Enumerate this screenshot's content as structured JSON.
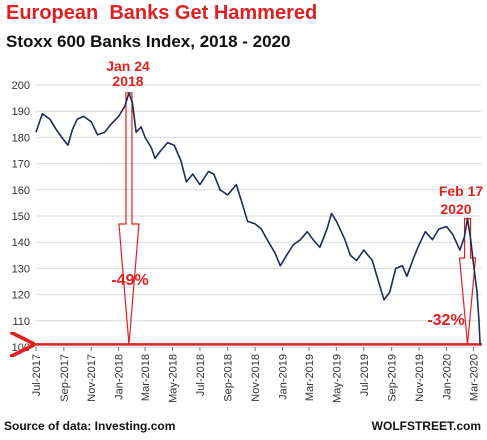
{
  "title": "European  Banks Get Hammered",
  "subtitle": "Stoxx 600 Banks Index, 2018 - 2020",
  "source": "Source of data: Investing.com",
  "brand": "WOLFSTREET.com",
  "colors": {
    "line": "#1f2d55",
    "accent": "#e02020",
    "grid": "#d9d9d9"
  },
  "annotations": {
    "peak1_date": "Jan 24",
    "peak1_year": "2018",
    "peak2_date": "Feb 17",
    "peak2_year": "2020",
    "drop1": "-49%",
    "drop2": "-32%"
  },
  "chart_data": {
    "type": "line",
    "title": "Stoxx 600 Banks Index, 2018 - 2020",
    "xlabel": "",
    "ylabel": "",
    "ylim": [
      100,
      200
    ],
    "yticks": [
      100,
      110,
      120,
      130,
      140,
      150,
      160,
      170,
      180,
      190,
      200
    ],
    "grid": true,
    "xticks": [
      "Jul-2017",
      "Sep-2017",
      "Nov-2017",
      "Jan-2018",
      "Mar-2018",
      "May-2018",
      "Jul-2018",
      "Sep-2018",
      "Nov-2018",
      "Jan-2019",
      "Mar-2019",
      "May-2019",
      "Jul-2019",
      "Sep-2019",
      "Nov-2019",
      "Jan-2020",
      "Mar-2020"
    ],
    "series": [
      {
        "values": [
          {
            "x": "2017-07-01",
            "y": 182
          },
          {
            "x": "2017-07-15",
            "y": 189
          },
          {
            "x": "2017-08-01",
            "y": 187
          },
          {
            "x": "2017-08-15",
            "y": 183
          },
          {
            "x": "2017-09-01",
            "y": 179
          },
          {
            "x": "2017-09-10",
            "y": 177
          },
          {
            "x": "2017-09-20",
            "y": 183
          },
          {
            "x": "2017-10-01",
            "y": 187
          },
          {
            "x": "2017-10-15",
            "y": 188
          },
          {
            "x": "2017-11-01",
            "y": 186
          },
          {
            "x": "2017-11-15",
            "y": 181
          },
          {
            "x": "2017-12-01",
            "y": 182
          },
          {
            "x": "2017-12-15",
            "y": 185
          },
          {
            "x": "2018-01-01",
            "y": 188
          },
          {
            "x": "2018-01-15",
            "y": 192
          },
          {
            "x": "2018-01-24",
            "y": 197
          },
          {
            "x": "2018-02-01",
            "y": 193
          },
          {
            "x": "2018-02-09",
            "y": 182
          },
          {
            "x": "2018-02-20",
            "y": 184
          },
          {
            "x": "2018-03-01",
            "y": 180
          },
          {
            "x": "2018-03-15",
            "y": 176
          },
          {
            "x": "2018-03-23",
            "y": 172
          },
          {
            "x": "2018-04-05",
            "y": 175
          },
          {
            "x": "2018-04-20",
            "y": 178
          },
          {
            "x": "2018-05-05",
            "y": 177
          },
          {
            "x": "2018-05-20",
            "y": 171
          },
          {
            "x": "2018-06-01",
            "y": 163
          },
          {
            "x": "2018-06-15",
            "y": 166
          },
          {
            "x": "2018-07-01",
            "y": 162
          },
          {
            "x": "2018-07-20",
            "y": 167
          },
          {
            "x": "2018-08-01",
            "y": 166
          },
          {
            "x": "2018-08-15",
            "y": 160
          },
          {
            "x": "2018-09-01",
            "y": 158
          },
          {
            "x": "2018-09-20",
            "y": 162
          },
          {
            "x": "2018-10-01",
            "y": 156
          },
          {
            "x": "2018-10-15",
            "y": 148
          },
          {
            "x": "2018-11-01",
            "y": 147
          },
          {
            "x": "2018-11-15",
            "y": 145
          },
          {
            "x": "2018-12-01",
            "y": 140
          },
          {
            "x": "2018-12-15",
            "y": 136
          },
          {
            "x": "2018-12-27",
            "y": 131
          },
          {
            "x": "2019-01-10",
            "y": 135
          },
          {
            "x": "2019-01-25",
            "y": 139
          },
          {
            "x": "2019-02-10",
            "y": 141
          },
          {
            "x": "2019-02-25",
            "y": 144
          },
          {
            "x": "2019-03-10",
            "y": 141
          },
          {
            "x": "2019-03-25",
            "y": 138
          },
          {
            "x": "2019-04-10",
            "y": 145
          },
          {
            "x": "2019-04-20",
            "y": 151
          },
          {
            "x": "2019-05-01",
            "y": 148
          },
          {
            "x": "2019-05-20",
            "y": 141
          },
          {
            "x": "2019-06-01",
            "y": 135
          },
          {
            "x": "2019-06-15",
            "y": 133
          },
          {
            "x": "2019-07-01",
            "y": 137
          },
          {
            "x": "2019-07-20",
            "y": 133
          },
          {
            "x": "2019-08-01",
            "y": 126
          },
          {
            "x": "2019-08-15",
            "y": 118
          },
          {
            "x": "2019-08-28",
            "y": 121
          },
          {
            "x": "2019-09-10",
            "y": 130
          },
          {
            "x": "2019-09-25",
            "y": 131
          },
          {
            "x": "2019-10-05",
            "y": 127
          },
          {
            "x": "2019-10-20",
            "y": 134
          },
          {
            "x": "2019-11-01",
            "y": 139
          },
          {
            "x": "2019-11-15",
            "y": 144
          },
          {
            "x": "2019-12-01",
            "y": 141
          },
          {
            "x": "2019-12-15",
            "y": 145
          },
          {
            "x": "2020-01-01",
            "y": 146
          },
          {
            "x": "2020-01-15",
            "y": 143
          },
          {
            "x": "2020-01-31",
            "y": 137
          },
          {
            "x": "2020-02-10",
            "y": 142
          },
          {
            "x": "2020-02-17",
            "y": 149
          },
          {
            "x": "2020-02-24",
            "y": 141
          },
          {
            "x": "2020-03-01",
            "y": 132
          },
          {
            "x": "2020-03-09",
            "y": 121
          },
          {
            "x": "2020-03-13",
            "y": 111
          },
          {
            "x": "2020-03-16",
            "y": 101
          }
        ]
      }
    ],
    "reference_line": 101
  }
}
